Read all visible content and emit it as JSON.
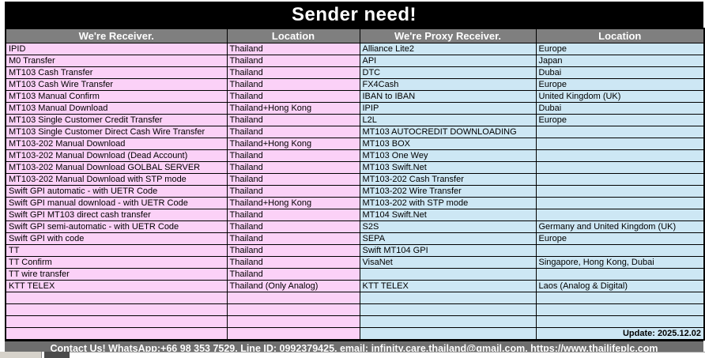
{
  "title": "Sender need!",
  "table": {
    "columns": [
      "We're Receiver.",
      "Location",
      "We're Proxy Receiver.",
      "Location"
    ],
    "rows": [
      {
        "receiver": "IPID",
        "receiver_location": "Thailand",
        "proxy": "Alliance Lite2",
        "proxy_location": "Europe"
      },
      {
        "receiver": "M0 Transfer",
        "receiver_location": "Thailand",
        "proxy": "API",
        "proxy_location": "Japan"
      },
      {
        "receiver": "MT103 Cash Transfer",
        "receiver_location": "Thailand",
        "proxy": "DTC",
        "proxy_location": "Dubai"
      },
      {
        "receiver": "MT103 Cash Wire Transfer",
        "receiver_location": "Thailand",
        "proxy": "FX4Cash",
        "proxy_location": "Europe"
      },
      {
        "receiver": "MT103 Manual Confirm",
        "receiver_location": "Thailand",
        "proxy": "IBAN to IBAN",
        "proxy_location": "United Kingdom (UK)"
      },
      {
        "receiver": "MT103 Manual Download",
        "receiver_location": "Thailand+Hong Kong",
        "proxy": "IPIP",
        "proxy_location": "Dubai"
      },
      {
        "receiver": "MT103 Single Customer Credit Transfer",
        "receiver_location": "Thailand",
        "proxy": "L2L",
        "proxy_location": "Europe"
      },
      {
        "receiver": "MT103 Single Customer Direct Cash Wire Transfer",
        "receiver_location": "Thailand",
        "proxy": "MT103 AUTOCREDIT DOWNLOADING",
        "proxy_location": ""
      },
      {
        "receiver": "MT103-202 Manual Download",
        "receiver_location": "Thailand+Hong Kong",
        "proxy": "MT103 BOX",
        "proxy_location": ""
      },
      {
        "receiver": "MT103-202 Manual Download (Dead Account)",
        "receiver_location": "Thailand",
        "proxy": "MT103 One Wey",
        "proxy_location": ""
      },
      {
        "receiver": "MT103-202 Manual Download GOLBAL SERVER",
        "receiver_location": "Thailand",
        "proxy": "MT103 Swift.Net",
        "proxy_location": ""
      },
      {
        "receiver": "MT103-202 Manual Download with STP mode",
        "receiver_location": "Thailand",
        "proxy": "MT103-202 Cash Transfer",
        "proxy_location": ""
      },
      {
        "receiver": "Swift GPI automatic - with UETR Code",
        "receiver_location": "Thailand",
        "proxy": "MT103-202 Wire Transfer",
        "proxy_location": ""
      },
      {
        "receiver": "Swift GPI manual download - with UETR Code",
        "receiver_location": "Thailand+Hong Kong",
        "proxy": "MT103-202 with STP mode",
        "proxy_location": ""
      },
      {
        "receiver": "Swift GPI MT103 direct cash transfer",
        "receiver_location": "Thailand",
        "proxy": "MT104 Swift.Net",
        "proxy_location": ""
      },
      {
        "receiver": "Swift GPI semi-automatic - with UETR Code",
        "receiver_location": "Thailand",
        "proxy": "S2S",
        "proxy_location": "Germany and United Kingdom (UK)"
      },
      {
        "receiver": "Swift GPI with code",
        "receiver_location": "Thailand",
        "proxy": "SEPA",
        "proxy_location": "Europe"
      },
      {
        "receiver": "TT",
        "receiver_location": "Thailand",
        "proxy": "Swift MT104 GPI",
        "proxy_location": ""
      },
      {
        "receiver": "TT Confirm",
        "receiver_location": "Thailand",
        "proxy": "VisaNet",
        "proxy_location": "Singapore, Hong Kong, Dubai"
      },
      {
        "receiver": "TT wire transfer",
        "receiver_location": "Thailand",
        "proxy": "",
        "proxy_location": ""
      },
      {
        "receiver": "KTT TELEX",
        "receiver_location": "Thailand (Only Analog)",
        "proxy": "KTT TELEX",
        "proxy_location": "Laos (Analog & Digital)"
      },
      {
        "receiver": "",
        "receiver_location": "",
        "proxy": "",
        "proxy_location": ""
      },
      {
        "receiver": "",
        "receiver_location": "",
        "proxy": "",
        "proxy_location": ""
      },
      {
        "receiver": "",
        "receiver_location": "",
        "proxy": "",
        "proxy_location": ""
      }
    ],
    "update_label": "Update: 2025.12.02"
  },
  "footer": {
    "text": "Contact Us! WhatsApp:+66 98 353 7529, Line ID: 0992379425, email: infinity.care.thailand@gmail.com,  https://www.thailifeplc.com"
  },
  "colors": {
    "title_bg": "#000000",
    "header_bg": "#7F7F7F",
    "receiver_bg": "#FBD1F7",
    "proxy_bg": "#CDE7F4",
    "footer_bg": "#6E6E6E"
  }
}
